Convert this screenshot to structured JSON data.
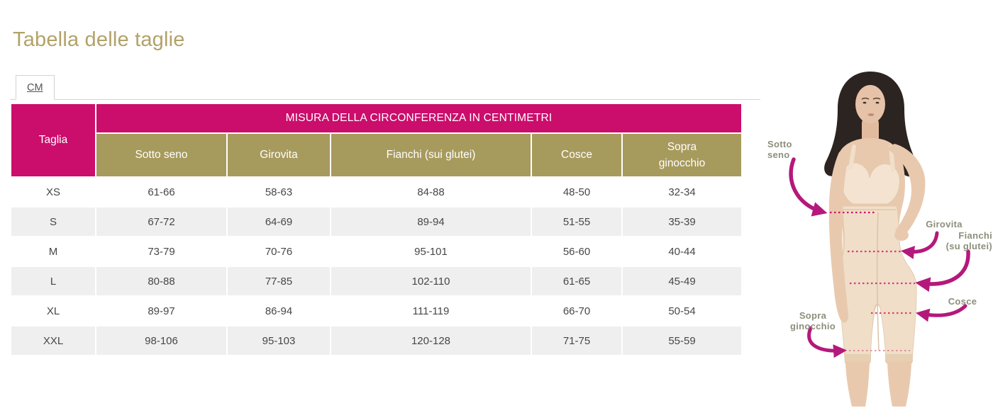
{
  "page": {
    "title": "Tabella delle taglie"
  },
  "tabs": [
    {
      "label": "CM",
      "active": true
    }
  ],
  "table": {
    "corner_header": "Taglia",
    "group_header": "MISURA DELLA CIRCONFERENZA IN CENTIMETRI",
    "columns": [
      "Sotto seno",
      "Girovita",
      "Fianchi (sui glutei)",
      "Cosce",
      "Sopra ginocchio"
    ],
    "rows": [
      {
        "size": "XS",
        "values": [
          "61-66",
          "58-63",
          "84-88",
          "48-50",
          "32-34"
        ]
      },
      {
        "size": "S",
        "values": [
          "67-72",
          "64-69",
          "89-94",
          "51-55",
          "35-39"
        ]
      },
      {
        "size": "M",
        "values": [
          "73-79",
          "70-76",
          "95-101",
          "56-60",
          "40-44"
        ]
      },
      {
        "size": "L",
        "values": [
          "80-88",
          "77-85",
          "102-110",
          "61-65",
          "45-49"
        ]
      },
      {
        "size": "XL",
        "values": [
          "89-97",
          "86-94",
          "111-119",
          "66-70",
          "50-54"
        ]
      },
      {
        "size": "XXL",
        "values": [
          "98-106",
          "95-103",
          "120-128",
          "71-75",
          "55-59"
        ]
      }
    ]
  },
  "diagram": {
    "labels": {
      "sotto_seno_1": "Sotto",
      "sotto_seno_2": "seno",
      "girovita": "Girovita",
      "fianchi_1": "Fianchi",
      "fianchi_2": "(su glutei)",
      "cosce": "Cosce",
      "sopra_1": "Sopra",
      "sopra_2": "ginocchio"
    }
  },
  "colors": {
    "pink_header": "#cb0d6c",
    "olive_header": "#a79a5d",
    "title": "#b2a268",
    "row_alt": "#efefef",
    "arrow": "#b5187b",
    "dotted_line": "#d40f73",
    "diagram_label": "#8d8f7b"
  }
}
